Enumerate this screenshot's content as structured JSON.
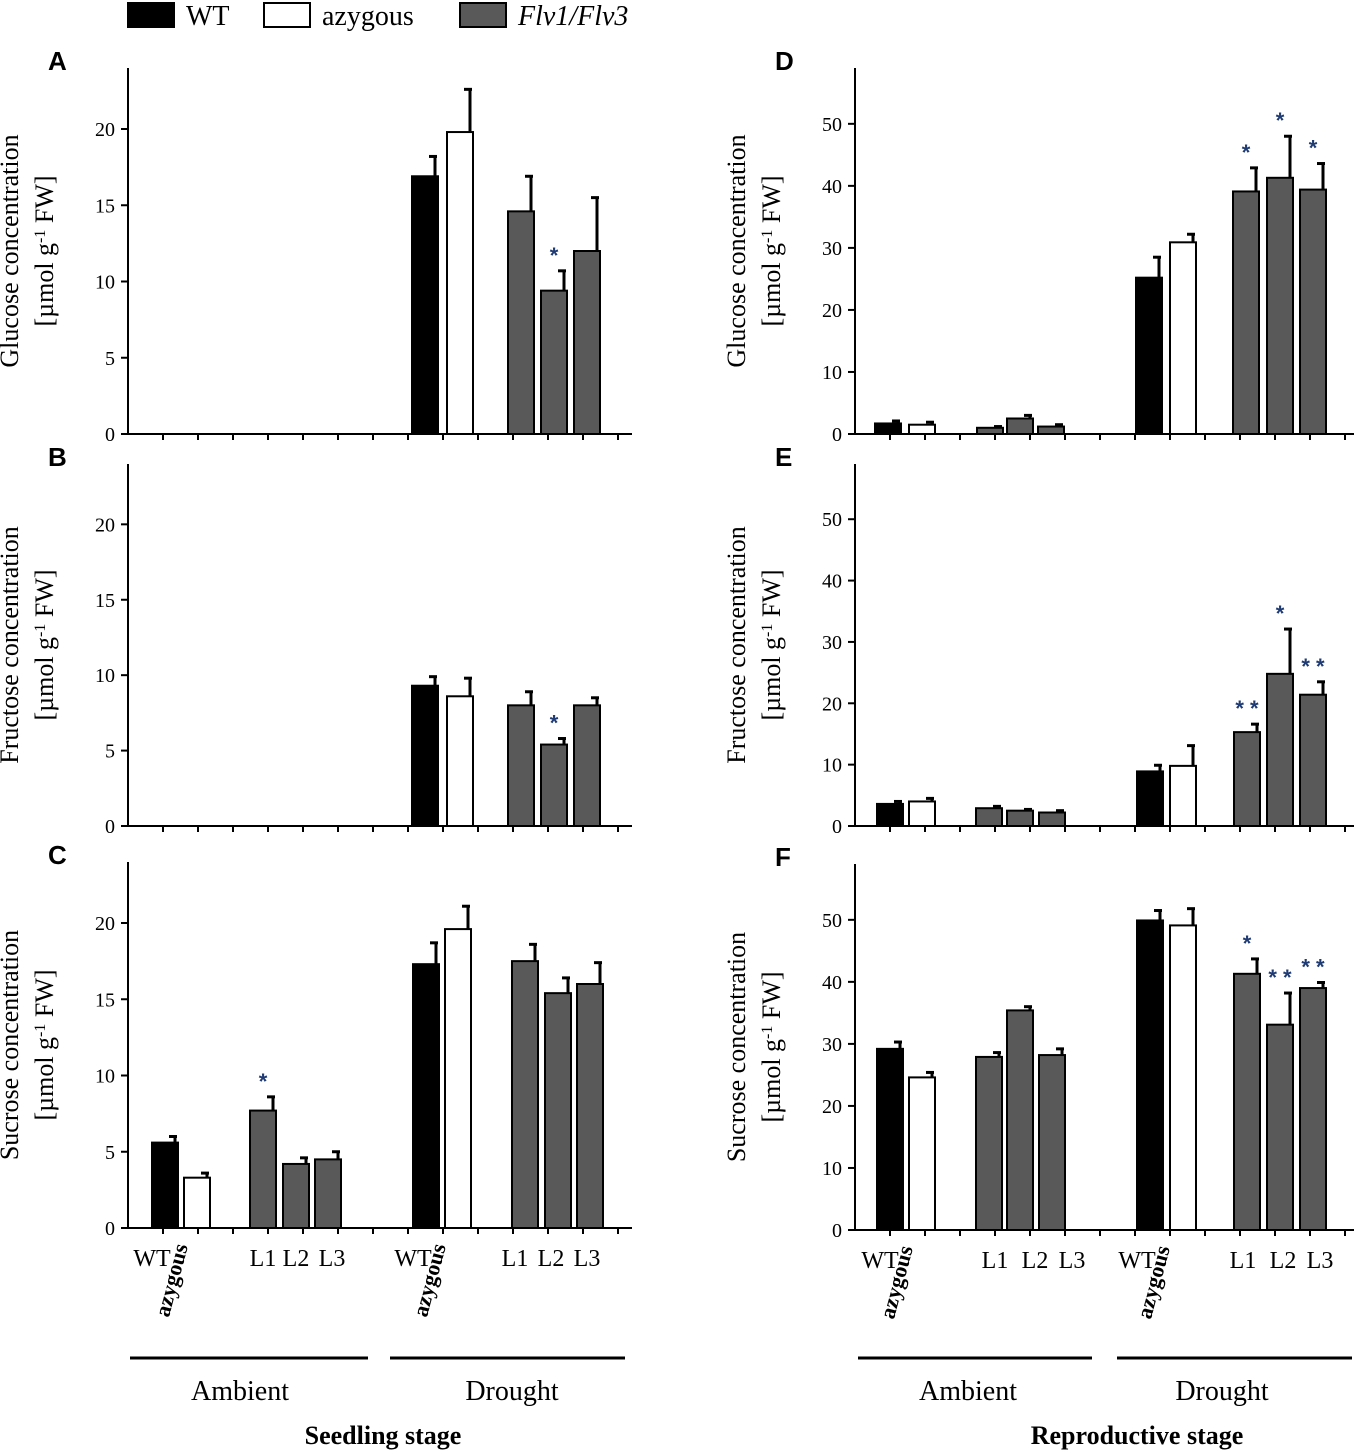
{
  "legend": {
    "items": [
      {
        "label": "WT",
        "color": "#000000",
        "italic": false
      },
      {
        "label": "azygous",
        "color": "#ffffff",
        "italic": false
      },
      {
        "label": "Flv1/Flv3",
        "color": "#595959",
        "italic": true
      }
    ]
  },
  "colors": {
    "wt": "#000000",
    "azygous": "#ffffff",
    "flv": "#595959",
    "star": "#1f3b73",
    "axis": "#000000"
  },
  "groups": {
    "ambient": "Ambient",
    "drought": "Drought",
    "seedling": "Seedling stage",
    "reproductive": "Reproductive stage"
  },
  "x_tick_labels": [
    "WT",
    "azygous",
    "L1",
    "L2",
    "L3",
    "WT",
    "azygous",
    "L1",
    "L2",
    "L3"
  ],
  "chart_data": [
    {
      "panel": "A",
      "type": "bar",
      "stage": "Seedling stage",
      "ylabel_line1": "Glucose concentration",
      "ylabel_line2": "[µmol g",
      "ylabel_sup": "-1",
      "ylabel_line2_end": " FW]",
      "ylim": [
        0,
        24
      ],
      "yticks": [
        0,
        5,
        10,
        15,
        20
      ],
      "categories": [
        "WT",
        "azygous",
        "L1",
        "L2",
        "L3",
        "WT",
        "azygous",
        "L1",
        "L2",
        "L3"
      ],
      "values": [
        0,
        0,
        0,
        0,
        0,
        16.9,
        19.8,
        14.6,
        9.4,
        12.0
      ],
      "errors": [
        0,
        0,
        0,
        0,
        0,
        1.3,
        2.8,
        2.3,
        1.3,
        3.5
      ],
      "significance": [
        "",
        "",
        "",
        "",
        "",
        "",
        "",
        "",
        "*",
        ""
      ]
    },
    {
      "panel": "B",
      "type": "bar",
      "stage": "Seedling stage",
      "ylabel_line1": "Fructose concentration",
      "ylabel_line2": "[µmol g",
      "ylabel_sup": "-1",
      "ylabel_line2_end": " FW]",
      "ylim": [
        0,
        24
      ],
      "yticks": [
        0,
        5,
        10,
        15,
        20
      ],
      "categories": [
        "WT",
        "azygous",
        "L1",
        "L2",
        "L3",
        "WT",
        "azygous",
        "L1",
        "L2",
        "L3"
      ],
      "values": [
        0,
        0,
        0,
        0,
        0,
        9.3,
        8.6,
        8.0,
        5.4,
        8.0
      ],
      "errors": [
        0,
        0,
        0,
        0,
        0,
        0.6,
        1.2,
        0.9,
        0.4,
        0.5
      ],
      "significance": [
        "",
        "",
        "",
        "",
        "",
        "",
        "",
        "",
        "*",
        ""
      ]
    },
    {
      "panel": "C",
      "type": "bar",
      "stage": "Seedling stage",
      "ylabel_line1": "Sucrose concentration",
      "ylabel_line2": "[µmol g",
      "ylabel_sup": "-1",
      "ylabel_line2_end": " FW]",
      "ylim": [
        0,
        24
      ],
      "yticks": [
        0,
        5,
        10,
        15,
        20
      ],
      "categories": [
        "WT",
        "azygous",
        "L1",
        "L2",
        "L3",
        "WT",
        "azygous",
        "L1",
        "L2",
        "L3"
      ],
      "values": [
        5.6,
        3.3,
        7.7,
        4.2,
        4.5,
        17.3,
        19.6,
        17.5,
        15.4,
        16.0
      ],
      "errors": [
        0.4,
        0.3,
        0.9,
        0.4,
        0.5,
        1.4,
        1.5,
        1.1,
        1.0,
        1.4
      ],
      "significance": [
        "",
        "",
        "*",
        "",
        "",
        "",
        "",
        "",
        "",
        ""
      ]
    },
    {
      "panel": "D",
      "type": "bar",
      "stage": "Reproductive stage",
      "ylabel_line1": "Glucose concentration",
      "ylabel_line2": "[µmol g",
      "ylabel_sup": "-1",
      "ylabel_line2_end": " FW]",
      "ylim": [
        0,
        59
      ],
      "yticks": [
        0,
        10,
        20,
        30,
        40,
        50
      ],
      "categories": [
        "WT",
        "azygous",
        "L1",
        "L2",
        "L3",
        "WT",
        "azygous",
        "L1",
        "L2",
        "L3"
      ],
      "values": [
        1.7,
        1.5,
        1.0,
        2.5,
        1.2,
        25.2,
        30.9,
        39.1,
        41.3,
        39.4
      ],
      "errors": [
        0.4,
        0.4,
        0.2,
        0.5,
        0.3,
        3.3,
        1.3,
        3.8,
        6.7,
        4.2
      ],
      "significance": [
        "",
        "",
        "",
        "",
        "",
        "",
        "",
        "*",
        "*",
        "*"
      ]
    },
    {
      "panel": "E",
      "type": "bar",
      "stage": "Reproductive stage",
      "ylabel_line1": "Fructose concentration",
      "ylabel_line2": "[µmol g",
      "ylabel_sup": "-1",
      "ylabel_line2_end": " FW]",
      "ylim": [
        0,
        59
      ],
      "yticks": [
        0,
        10,
        20,
        30,
        40,
        50
      ],
      "categories": [
        "WT",
        "azygous",
        "L1",
        "L2",
        "L3",
        "WT",
        "azygous",
        "L1",
        "L2",
        "L3"
      ],
      "values": [
        3.6,
        4.0,
        2.9,
        2.5,
        2.2,
        8.9,
        9.8,
        15.3,
        24.8,
        21.4
      ],
      "errors": [
        0.4,
        0.5,
        0.3,
        0.2,
        0.3,
        1.0,
        3.3,
        1.3,
        7.3,
        2.1
      ],
      "significance": [
        "",
        "",
        "",
        "",
        "",
        "",
        "",
        "**",
        "*",
        "**"
      ]
    },
    {
      "panel": "F",
      "type": "bar",
      "stage": "Reproductive stage",
      "ylabel_line1": "Sucrose concentration",
      "ylabel_line2": "[µmol g",
      "ylabel_sup": "-1",
      "ylabel_line2_end": " FW]",
      "ylim": [
        0,
        59
      ],
      "yticks": [
        0,
        10,
        20,
        30,
        40,
        50
      ],
      "categories": [
        "WT",
        "azygous",
        "L1",
        "L2",
        "L3",
        "WT",
        "azygous",
        "L1",
        "L2",
        "L3"
      ],
      "values": [
        29.2,
        24.6,
        27.9,
        35.4,
        28.2,
        49.9,
        49.1,
        41.3,
        33.1,
        39.0
      ],
      "errors": [
        1.1,
        0.8,
        0.7,
        0.6,
        1.0,
        1.6,
        2.7,
        2.4,
        5.1,
        0.9
      ],
      "significance": [
        "",
        "",
        "",
        "",
        "",
        "",
        "",
        "*",
        "**",
        "**"
      ]
    }
  ]
}
